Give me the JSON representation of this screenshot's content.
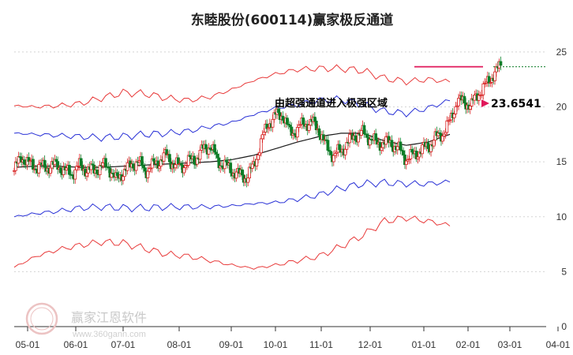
{
  "chart_data": {
    "type": "line",
    "title": "东睦股份(600114)赢家极反通道",
    "x_tick_labels": [
      "05-01",
      "06-01",
      "07-01",
      "08-01",
      "09-01",
      "10-01",
      "11-01",
      "12-01",
      "01-01",
      "02-01",
      "03-01",
      "04-01"
    ],
    "y_tick_labels": [
      "0",
      "5",
      "10",
      "15",
      "20",
      "25"
    ],
    "ylim": [
      0,
      26.5
    ],
    "grid": "horizontal dashed",
    "annotation": {
      "text": "由超强通道进入极强区域",
      "value_label": "23.6541",
      "value": 23.6541
    },
    "watermark": {
      "text": "赢家江恩软件",
      "url": "www.360gann.com",
      "seal": "江恩 软件"
    },
    "colors": {
      "candle_up": "#d71f1f",
      "candle_down": "#0e7d28",
      "upper_outer": "#e83a3a",
      "upper_inner": "#2830d6",
      "middle": "#1a1a1a",
      "lower_inner": "#2830d6",
      "lower_outer": "#e83a3a",
      "arrow": "#e0185a"
    },
    "series": [
      {
        "key": "upper_outer",
        "points": [
          [
            0,
            20.1
          ],
          [
            10,
            20.0
          ],
          [
            20,
            20.1
          ],
          [
            30,
            20.3
          ],
          [
            40,
            20.8
          ],
          [
            50,
            21.3
          ],
          [
            60,
            21.2
          ],
          [
            70,
            20.8
          ],
          [
            80,
            20.6
          ],
          [
            90,
            20.9
          ],
          [
            100,
            21.6
          ],
          [
            110,
            22.4
          ],
          [
            120,
            23.0
          ],
          [
            130,
            23.4
          ],
          [
            140,
            23.5
          ],
          [
            150,
            23.5
          ],
          [
            160,
            23.3
          ],
          [
            170,
            22.6
          ],
          [
            180,
            22.3
          ],
          [
            190,
            22.5
          ],
          [
            200,
            22.3
          ]
        ]
      },
      {
        "key": "upper_inner",
        "points": [
          [
            0,
            17.6
          ],
          [
            10,
            17.5
          ],
          [
            20,
            17.4
          ],
          [
            30,
            17.3
          ],
          [
            40,
            17.2
          ],
          [
            50,
            17.3
          ],
          [
            60,
            17.5
          ],
          [
            70,
            17.6
          ],
          [
            80,
            17.8
          ],
          [
            90,
            18.2
          ],
          [
            100,
            18.6
          ],
          [
            110,
            19.3
          ],
          [
            120,
            19.9
          ],
          [
            130,
            20.2
          ],
          [
            140,
            20.6
          ],
          [
            150,
            20.7
          ],
          [
            160,
            20.2
          ],
          [
            170,
            19.6
          ],
          [
            180,
            19.4
          ],
          [
            190,
            19.9
          ],
          [
            200,
            20.6
          ]
        ]
      },
      {
        "key": "middle",
        "points": [
          [
            0,
            14.5
          ],
          [
            10,
            14.6
          ],
          [
            20,
            14.6
          ],
          [
            30,
            14.5
          ],
          [
            40,
            14.5
          ],
          [
            50,
            14.6
          ],
          [
            60,
            14.7
          ],
          [
            70,
            14.8
          ],
          [
            80,
            14.9
          ],
          [
            90,
            15.0
          ],
          [
            100,
            15.2
          ],
          [
            110,
            15.6
          ],
          [
            120,
            16.2
          ],
          [
            130,
            16.8
          ],
          [
            140,
            17.3
          ],
          [
            150,
            17.6
          ],
          [
            160,
            17.6
          ],
          [
            170,
            16.9
          ],
          [
            180,
            16.5
          ],
          [
            190,
            16.8
          ],
          [
            200,
            17.5
          ]
        ]
      },
      {
        "key": "lower_inner",
        "points": [
          [
            0,
            10.0
          ],
          [
            10,
            10.3
          ],
          [
            20,
            10.5
          ],
          [
            30,
            10.8
          ],
          [
            40,
            10.9
          ],
          [
            50,
            10.8
          ],
          [
            60,
            10.8
          ],
          [
            70,
            10.9
          ],
          [
            80,
            10.9
          ],
          [
            90,
            10.9
          ],
          [
            100,
            11.0
          ],
          [
            110,
            11.2
          ],
          [
            120,
            11.3
          ],
          [
            130,
            11.6
          ],
          [
            140,
            12.0
          ],
          [
            150,
            12.6
          ],
          [
            160,
            13.0
          ],
          [
            170,
            13.1
          ],
          [
            180,
            13.0
          ],
          [
            190,
            13.0
          ],
          [
            200,
            13.2
          ]
        ]
      },
      {
        "key": "lower_outer",
        "points": [
          [
            0,
            5.4
          ],
          [
            10,
            6.4
          ],
          [
            20,
            7.0
          ],
          [
            30,
            7.4
          ],
          [
            40,
            7.7
          ],
          [
            50,
            7.6
          ],
          [
            60,
            7.1
          ],
          [
            70,
            6.6
          ],
          [
            80,
            6.4
          ],
          [
            90,
            6.0
          ],
          [
            100,
            5.6
          ],
          [
            110,
            5.3
          ],
          [
            120,
            5.6
          ],
          [
            130,
            6.0
          ],
          [
            140,
            6.4
          ],
          [
            150,
            7.3
          ],
          [
            160,
            8.3
          ],
          [
            170,
            9.6
          ],
          [
            180,
            9.9
          ],
          [
            190,
            9.6
          ],
          [
            200,
            9.2
          ]
        ]
      }
    ],
    "close": [
      [
        0,
        14.2
      ],
      [
        10,
        15.5
      ],
      [
        20,
        14.8
      ],
      [
        30,
        14.6
      ],
      [
        40,
        14.5
      ],
      [
        50,
        14.6
      ],
      [
        60,
        14.7
      ],
      [
        70,
        14.1
      ],
      [
        80,
        14.0
      ],
      [
        90,
        14.6
      ],
      [
        100,
        14.3
      ],
      [
        110,
        14.2
      ],
      [
        120,
        14.6
      ],
      [
        130,
        14.6
      ],
      [
        140,
        13.3
      ],
      [
        150,
        14.1
      ],
      [
        160,
        14.6
      ],
      [
        170,
        15.1
      ],
      [
        180,
        14.2
      ],
      [
        190,
        14.6
      ],
      [
        200,
        15.1
      ],
      [
        210,
        15.6
      ],
      [
        220,
        14.7
      ],
      [
        230,
        14.6
      ],
      [
        240,
        15.0
      ],
      [
        250,
        15.3
      ],
      [
        260,
        16.1
      ],
      [
        270,
        16.5
      ],
      [
        280,
        15.1
      ],
      [
        290,
        14.7
      ],
      [
        300,
        14.2
      ],
      [
        310,
        13.8
      ],
      [
        320,
        13.6
      ],
      [
        330,
        14.6
      ],
      [
        340,
        16.8
      ],
      [
        350,
        18.5
      ],
      [
        360,
        19.2
      ],
      [
        370,
        19.3
      ],
      [
        380,
        17.6
      ],
      [
        390,
        18.0
      ],
      [
        400,
        18.5
      ],
      [
        410,
        18.6
      ],
      [
        420,
        17.9
      ],
      [
        430,
        16.3
      ],
      [
        440,
        15.6
      ],
      [
        450,
        16.0
      ],
      [
        460,
        16.8
      ],
      [
        470,
        17.4
      ],
      [
        480,
        17.6
      ],
      [
        490,
        17.2
      ],
      [
        500,
        16.6
      ],
      [
        510,
        16.8
      ],
      [
        520,
        16.7
      ],
      [
        530,
        16.1
      ],
      [
        540,
        15.3
      ],
      [
        550,
        15.6
      ],
      [
        560,
        16.1
      ],
      [
        570,
        16.4
      ],
      [
        580,
        17.1
      ],
      [
        590,
        17.6
      ],
      [
        600,
        18.6
      ],
      [
        610,
        20.6
      ],
      [
        620,
        20.4
      ],
      [
        630,
        20.2
      ],
      [
        640,
        21.3
      ],
      [
        650,
        22.0
      ],
      [
        660,
        23.0
      ],
      [
        670,
        23.65
      ]
    ]
  }
}
